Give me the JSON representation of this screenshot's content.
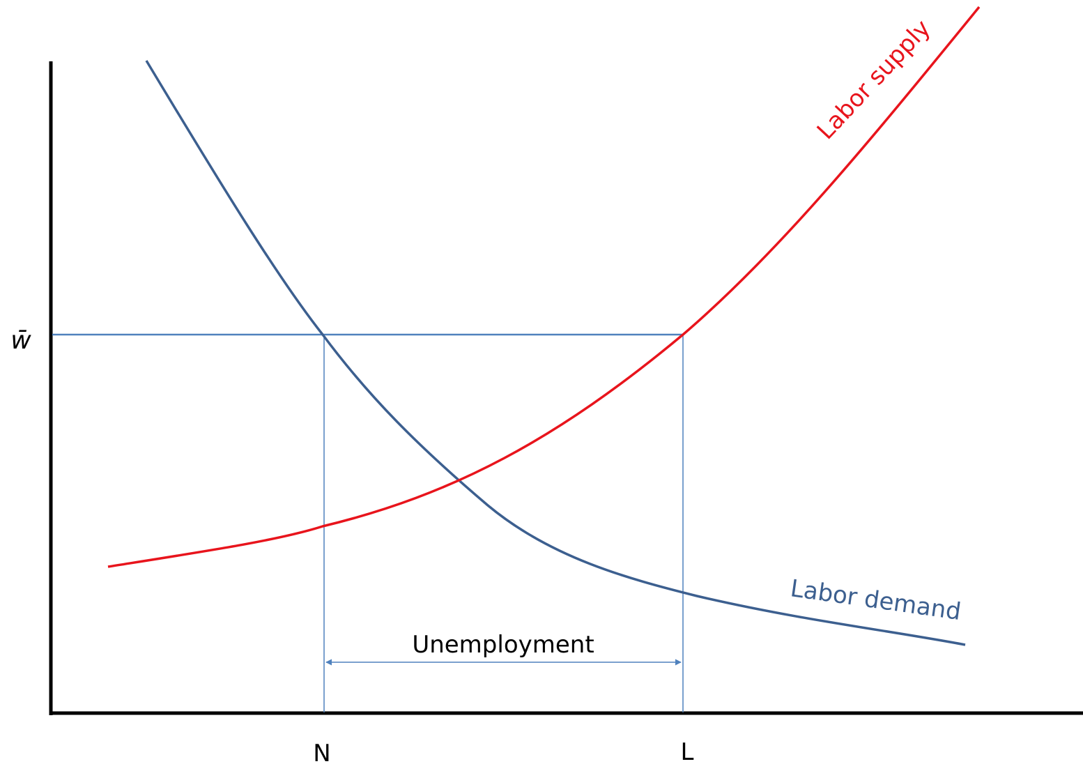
{
  "wage_label": "w̄",
  "x_labels": [
    "N",
    "L"
  ],
  "gap_label": "Unemployment",
  "curves": {
    "supply": "Labor supply",
    "demand": "Labor demand"
  }
}
